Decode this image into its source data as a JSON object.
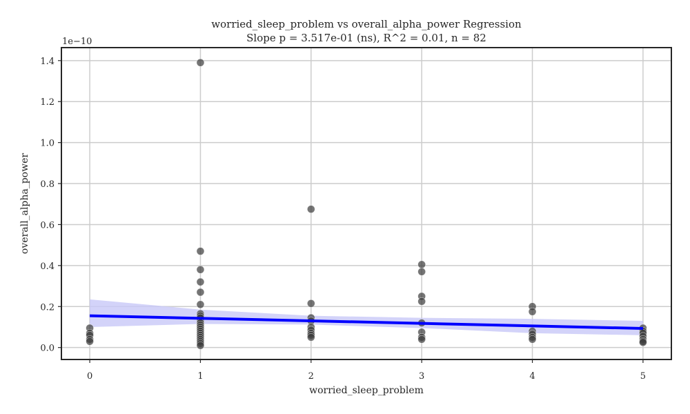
{
  "chart_data": {
    "type": "scatter",
    "title": "worried_sleep_problem vs overall_alpha_power Regression",
    "subtitle": "Slope p = 3.517e-01 (ns), R^2 = 0.01, n = 82",
    "xlabel": "worried_sleep_problem",
    "ylabel": "overall_alpha_power",
    "y_offset_label": "1e−10",
    "xlim": [
      -0.25,
      5.25
    ],
    "ylim": [
      -0.055,
      1.46
    ],
    "x_ticks": [
      0,
      1,
      2,
      3,
      4,
      5
    ],
    "x_tick_labels": [
      "0",
      "1",
      "2",
      "3",
      "4",
      "5"
    ],
    "y_ticks": [
      0.0,
      0.2,
      0.4,
      0.6,
      0.8,
      1.0,
      1.2,
      1.4
    ],
    "y_tick_labels": [
      "0.0",
      "0.2",
      "0.4",
      "0.6",
      "0.8",
      "1.0",
      "1.2",
      "1.4"
    ],
    "grid": true,
    "colors": {
      "points": "#3a3a3a",
      "regression_line": "#0000ff",
      "confidence_band": "#c8c8f8",
      "grid": "#cccccc",
      "frame": "#262626"
    },
    "points": [
      {
        "x": 0,
        "y": 0.095
      },
      {
        "x": 0,
        "y": 0.07
      },
      {
        "x": 0,
        "y": 0.06
      },
      {
        "x": 0,
        "y": 0.04
      },
      {
        "x": 0,
        "y": 0.03
      },
      {
        "x": 1,
        "y": 1.39
      },
      {
        "x": 1,
        "y": 0.47
      },
      {
        "x": 1,
        "y": 0.38
      },
      {
        "x": 1,
        "y": 0.32
      },
      {
        "x": 1,
        "y": 0.27
      },
      {
        "x": 1,
        "y": 0.21
      },
      {
        "x": 1,
        "y": 0.165
      },
      {
        "x": 1,
        "y": 0.155
      },
      {
        "x": 1,
        "y": 0.145
      },
      {
        "x": 1,
        "y": 0.13
      },
      {
        "x": 1,
        "y": 0.12
      },
      {
        "x": 1,
        "y": 0.11
      },
      {
        "x": 1,
        "y": 0.1
      },
      {
        "x": 1,
        "y": 0.09
      },
      {
        "x": 1,
        "y": 0.08
      },
      {
        "x": 1,
        "y": 0.07
      },
      {
        "x": 1,
        "y": 0.06
      },
      {
        "x": 1,
        "y": 0.05
      },
      {
        "x": 1,
        "y": 0.04
      },
      {
        "x": 1,
        "y": 0.03
      },
      {
        "x": 1,
        "y": 0.02
      },
      {
        "x": 1,
        "y": 0.01
      },
      {
        "x": 2,
        "y": 0.675
      },
      {
        "x": 2,
        "y": 0.215
      },
      {
        "x": 2,
        "y": 0.145
      },
      {
        "x": 2,
        "y": 0.13
      },
      {
        "x": 2,
        "y": 0.1
      },
      {
        "x": 2,
        "y": 0.085
      },
      {
        "x": 2,
        "y": 0.07
      },
      {
        "x": 2,
        "y": 0.06
      },
      {
        "x": 2,
        "y": 0.05
      },
      {
        "x": 3,
        "y": 0.405
      },
      {
        "x": 3,
        "y": 0.37
      },
      {
        "x": 3,
        "y": 0.25
      },
      {
        "x": 3,
        "y": 0.225
      },
      {
        "x": 3,
        "y": 0.12
      },
      {
        "x": 3,
        "y": 0.075
      },
      {
        "x": 3,
        "y": 0.05
      },
      {
        "x": 3,
        "y": 0.04
      },
      {
        "x": 4,
        "y": 0.2
      },
      {
        "x": 4,
        "y": 0.175
      },
      {
        "x": 4,
        "y": 0.08
      },
      {
        "x": 4,
        "y": 0.065
      },
      {
        "x": 4,
        "y": 0.05
      },
      {
        "x": 4,
        "y": 0.04
      },
      {
        "x": 5,
        "y": 0.095
      },
      {
        "x": 5,
        "y": 0.08
      },
      {
        "x": 5,
        "y": 0.07
      },
      {
        "x": 5,
        "y": 0.055
      },
      {
        "x": 5,
        "y": 0.04
      },
      {
        "x": 5,
        "y": 0.03
      },
      {
        "x": 5,
        "y": 0.025
      }
    ],
    "regression_line": {
      "x": [
        0,
        5
      ],
      "y": [
        0.155,
        0.093
      ]
    },
    "confidence_band": {
      "x": [
        0,
        1,
        2,
        3,
        4,
        5
      ],
      "lower": [
        0.1,
        0.115,
        0.112,
        0.095,
        0.07,
        0.06
      ],
      "upper": [
        0.235,
        0.185,
        0.155,
        0.145,
        0.14,
        0.13
      ]
    }
  }
}
